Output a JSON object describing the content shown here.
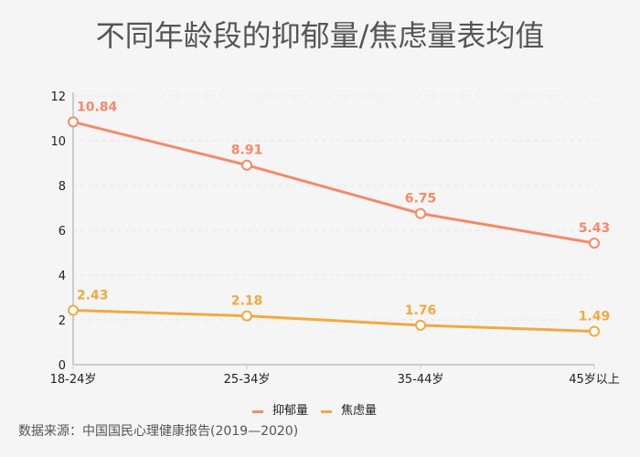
{
  "chart_data": {
    "type": "line",
    "title": "不同年龄段的抑郁量/焦虑量表均值",
    "categories": [
      "18-24岁",
      "25-34岁",
      "35-44岁",
      "45岁以上"
    ],
    "series": [
      {
        "name": "抑郁量",
        "values": [
          10.84,
          8.91,
          6.75,
          5.43
        ],
        "color": "#F58A68"
      },
      {
        "name": "焦虑量",
        "values": [
          2.43,
          2.18,
          1.76,
          1.49
        ],
        "color": "#F2A93F"
      }
    ],
    "ylim": [
      0,
      12
    ],
    "yticks": [
      0,
      2,
      4,
      6,
      8,
      10,
      12
    ],
    "grid": "horizontal-dashed",
    "legend": "bottom-center"
  },
  "source": "数据来源：中国国民心理健康报告(2019—2020)"
}
